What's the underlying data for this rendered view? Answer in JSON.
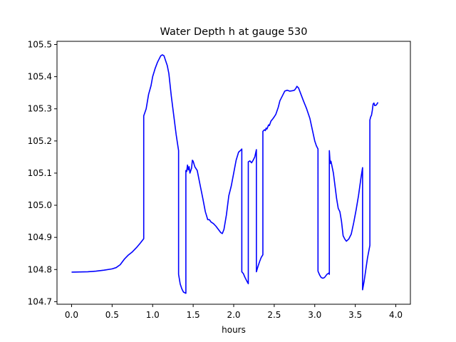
{
  "chart_data": {
    "type": "line",
    "title": "Water Depth h at gauge 530",
    "xlabel": "hours",
    "ylabel": "",
    "xlim": [
      -0.18,
      4.18
    ],
    "ylim": [
      104.692,
      105.51
    ],
    "x_ticks": [
      0.0,
      0.5,
      1.0,
      1.5,
      2.0,
      2.5,
      3.0,
      3.5,
      4.0
    ],
    "x_tick_labels": [
      "0.0",
      "0.5",
      "1.0",
      "1.5",
      "2.0",
      "2.5",
      "3.0",
      "3.5",
      "4.0"
    ],
    "y_ticks": [
      104.7,
      104.8,
      104.9,
      105.0,
      105.1,
      105.2,
      105.3,
      105.4,
      105.5
    ],
    "y_tick_labels": [
      "104.7",
      "104.8",
      "104.9",
      "105.0",
      "105.1",
      "105.2",
      "105.3",
      "105.4",
      "105.5"
    ],
    "grid": false,
    "series": [
      {
        "color": "#0000ff",
        "points": [
          [
            0.0,
            104.792
          ],
          [
            0.2,
            104.793
          ],
          [
            0.3,
            104.795
          ],
          [
            0.4,
            104.798
          ],
          [
            0.5,
            104.802
          ],
          [
            0.55,
            104.806
          ],
          [
            0.6,
            104.815
          ],
          [
            0.65,
            104.832
          ],
          [
            0.7,
            104.845
          ],
          [
            0.75,
            104.855
          ],
          [
            0.8,
            104.868
          ],
          [
            0.85,
            104.883
          ],
          [
            0.89,
            104.896
          ],
          [
            0.89,
            105.278
          ],
          [
            0.92,
            105.3
          ],
          [
            0.95,
            105.345
          ],
          [
            0.98,
            105.372
          ],
          [
            1.0,
            105.4
          ],
          [
            1.03,
            105.425
          ],
          [
            1.06,
            105.445
          ],
          [
            1.1,
            105.465
          ],
          [
            1.12,
            105.468
          ],
          [
            1.14,
            105.465
          ],
          [
            1.16,
            105.45
          ],
          [
            1.18,
            105.435
          ],
          [
            1.2,
            105.41
          ],
          [
            1.23,
            105.34
          ],
          [
            1.26,
            105.28
          ],
          [
            1.29,
            105.22
          ],
          [
            1.32,
            105.17
          ],
          [
            1.32,
            104.785
          ],
          [
            1.34,
            104.755
          ],
          [
            1.36,
            104.74
          ],
          [
            1.38,
            104.73
          ],
          [
            1.41,
            104.726
          ],
          [
            1.41,
            105.108
          ],
          [
            1.42,
            105.105
          ],
          [
            1.43,
            105.125
          ],
          [
            1.44,
            105.11
          ],
          [
            1.45,
            105.12
          ],
          [
            1.46,
            105.1
          ],
          [
            1.48,
            105.115
          ],
          [
            1.49,
            105.14
          ],
          [
            1.5,
            105.137
          ],
          [
            1.52,
            105.12
          ],
          [
            1.55,
            105.108
          ],
          [
            1.58,
            105.07
          ],
          [
            1.62,
            105.02
          ],
          [
            1.65,
            104.98
          ],
          [
            1.68,
            104.955
          ],
          [
            1.7,
            104.955
          ],
          [
            1.72,
            104.948
          ],
          [
            1.75,
            104.943
          ],
          [
            1.78,
            104.935
          ],
          [
            1.81,
            104.925
          ],
          [
            1.84,
            104.915
          ],
          [
            1.86,
            104.912
          ],
          [
            1.88,
            104.925
          ],
          [
            1.91,
            104.97
          ],
          [
            1.94,
            105.03
          ],
          [
            1.97,
            105.06
          ],
          [
            2.0,
            105.1
          ],
          [
            2.03,
            105.14
          ],
          [
            2.06,
            105.165
          ],
          [
            2.09,
            105.172
          ],
          [
            2.1,
            105.175
          ],
          [
            2.1,
            104.793
          ],
          [
            2.12,
            104.787
          ],
          [
            2.14,
            104.775
          ],
          [
            2.16,
            104.765
          ],
          [
            2.18,
            104.756
          ],
          [
            2.18,
            105.135
          ],
          [
            2.2,
            105.138
          ],
          [
            2.22,
            105.132
          ],
          [
            2.24,
            105.14
          ],
          [
            2.26,
            105.15
          ],
          [
            2.28,
            105.173
          ],
          [
            2.28,
            104.793
          ],
          [
            2.3,
            104.81
          ],
          [
            2.32,
            104.825
          ],
          [
            2.34,
            104.838
          ],
          [
            2.36,
            104.846
          ],
          [
            2.36,
            105.23
          ],
          [
            2.38,
            105.235
          ],
          [
            2.39,
            105.232
          ],
          [
            2.4,
            105.24
          ],
          [
            2.41,
            105.237
          ],
          [
            2.43,
            105.25
          ],
          [
            2.44,
            105.248
          ],
          [
            2.46,
            105.262
          ],
          [
            2.48,
            105.268
          ],
          [
            2.5,
            105.275
          ],
          [
            2.52,
            105.283
          ],
          [
            2.55,
            105.305
          ],
          [
            2.57,
            105.325
          ],
          [
            2.6,
            105.34
          ],
          [
            2.63,
            105.355
          ],
          [
            2.66,
            105.358
          ],
          [
            2.69,
            105.355
          ],
          [
            2.72,
            105.356
          ],
          [
            2.75,
            105.358
          ],
          [
            2.77,
            105.365
          ],
          [
            2.78,
            105.37
          ],
          [
            2.8,
            105.365
          ],
          [
            2.83,
            105.345
          ],
          [
            2.86,
            105.325
          ],
          [
            2.9,
            105.3
          ],
          [
            2.94,
            105.27
          ],
          [
            2.97,
            105.235
          ],
          [
            3.0,
            105.2
          ],
          [
            3.02,
            105.185
          ],
          [
            3.04,
            105.175
          ],
          [
            3.04,
            104.795
          ],
          [
            3.06,
            104.783
          ],
          [
            3.08,
            104.775
          ],
          [
            3.1,
            104.773
          ],
          [
            3.12,
            104.775
          ],
          [
            3.15,
            104.785
          ],
          [
            3.18,
            104.79
          ],
          [
            3.18,
            104.785
          ],
          [
            3.18,
            105.17
          ],
          [
            3.19,
            105.13
          ],
          [
            3.2,
            105.137
          ],
          [
            3.21,
            105.125
          ],
          [
            3.23,
            105.1
          ],
          [
            3.25,
            105.06
          ],
          [
            3.27,
            105.02
          ],
          [
            3.29,
            104.99
          ],
          [
            3.31,
            104.98
          ],
          [
            3.33,
            104.95
          ],
          [
            3.35,
            104.905
          ],
          [
            3.37,
            104.895
          ],
          [
            3.39,
            104.888
          ],
          [
            3.42,
            104.895
          ],
          [
            3.45,
            104.91
          ],
          [
            3.48,
            104.945
          ],
          [
            3.51,
            104.985
          ],
          [
            3.54,
            105.03
          ],
          [
            3.57,
            105.085
          ],
          [
            3.59,
            105.117
          ],
          [
            3.59,
            104.737
          ],
          [
            3.61,
            104.765
          ],
          [
            3.63,
            104.8
          ],
          [
            3.65,
            104.835
          ],
          [
            3.68,
            104.875
          ],
          [
            3.68,
            105.265
          ],
          [
            3.69,
            105.275
          ],
          [
            3.7,
            105.28
          ],
          [
            3.71,
            105.295
          ],
          [
            3.72,
            105.315
          ],
          [
            3.73,
            105.318
          ],
          [
            3.74,
            105.31
          ],
          [
            3.76,
            105.312
          ],
          [
            3.78,
            105.32
          ]
        ]
      }
    ]
  }
}
